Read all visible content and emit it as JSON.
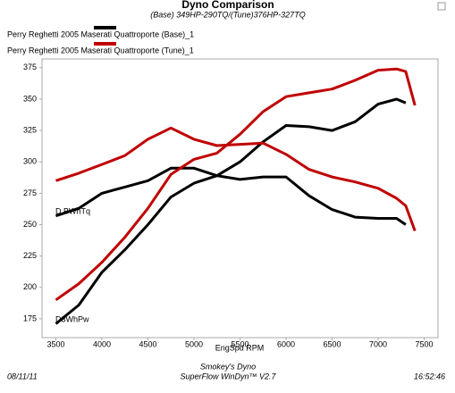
{
  "chart_data": {
    "type": "line",
    "title": "Dyno Comparison",
    "subtitle": "(Base) 349HP-290TQ/(Tune)376HP-327TQ",
    "x_label": "EngSpd  RPM",
    "annotations": [
      "D.BWhTq",
      "D3WhPw"
    ],
    "footer_left": "08/11/11",
    "footer_center": [
      "Smokey's Dyno",
      "SuperFlow WinDyn™ V2.7"
    ],
    "footer_right": "16:52:46",
    "x": [
      3500,
      3750,
      4000,
      4250,
      4500,
      4750,
      5000,
      5250,
      5500,
      5750,
      6000,
      6250,
      6500,
      6750,
      7000,
      7200,
      7300,
      7400
    ],
    "series": [
      {
        "name": "Perry  Reghetti 2005 Maserati Quattroporte (Base)_1",
        "color": "#000000",
        "hp": [
          171,
          186,
          212,
          230,
          250,
          272,
          283,
          289,
          300,
          316,
          329,
          328,
          325,
          332,
          346,
          350,
          347,
          null
        ],
        "tq": [
          257,
          263,
          275,
          280,
          285,
          295,
          295,
          289,
          286,
          288,
          288,
          273,
          262,
          256,
          255,
          255,
          250,
          null
        ]
      },
      {
        "name": "Perry  Reghetti 2005 Maserati Quattroporte (Tune)_1",
        "color": "#c00000",
        "hp": [
          190,
          203,
          220,
          240,
          263,
          290,
          302,
          307,
          322,
          340,
          352,
          355,
          358,
          365,
          373,
          374,
          372,
          345
        ],
        "tq": [
          285,
          291,
          298,
          305,
          318,
          327,
          318,
          313,
          314,
          315,
          306,
          294,
          288,
          284,
          279,
          271,
          265,
          245
        ]
      }
    ],
    "xlim": [
      3350,
      7650
    ],
    "ylim": [
      160,
      382
    ],
    "xticks": [
      3500,
      4000,
      4500,
      5000,
      5500,
      6000,
      6500,
      7000,
      7500
    ],
    "yticks": [
      175,
      200,
      225,
      250,
      275,
      300,
      325,
      350,
      375
    ],
    "grid": false
  }
}
